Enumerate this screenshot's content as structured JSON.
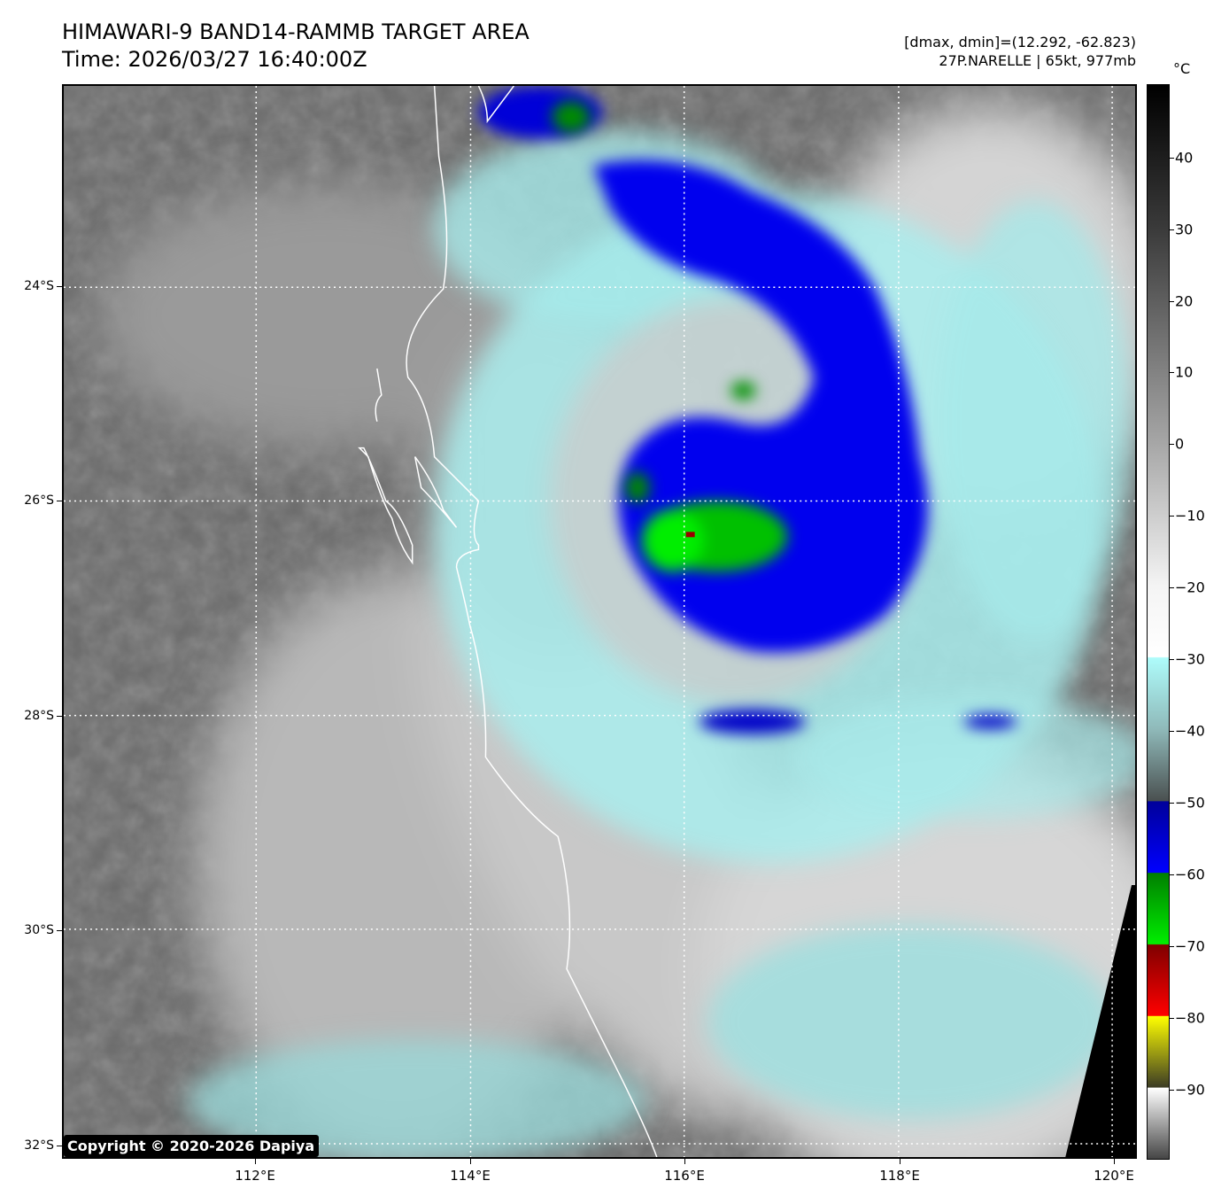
{
  "header": {
    "title": "HIMAWARI-9 BAND14-RAMMB TARGET AREA",
    "time": "Time: 2026/03/27 16:40:00Z",
    "range_text": "[dmax, dmin]=(12.292, -62.823)",
    "storm_text": "27P.NARELLE | 65kt, 977mb"
  },
  "map": {
    "latitude_labels": [
      "24°S",
      "26°S",
      "28°S",
      "30°S",
      "32°S"
    ],
    "longitude_labels": [
      "112°E",
      "114°E",
      "116°E",
      "118°E",
      "120°E"
    ],
    "copyright": "Copyright © 2020-2026 Dapiya"
  },
  "colorbar": {
    "unit": "°C",
    "tick_labels": [
      "40",
      "30",
      "20",
      "10",
      "0",
      "−10",
      "−20",
      "−30",
      "−40",
      "−50",
      "−60",
      "−70",
      "−80",
      "−90"
    ],
    "stops": [
      {
        "temp": 50,
        "color": "#000000"
      },
      {
        "temp": 30,
        "color": "#3a3a3a"
      },
      {
        "temp": 0,
        "color": "#a6a6a6"
      },
      {
        "temp": -20,
        "color": "#f4f4f4"
      },
      {
        "temp": -29.9,
        "color": "#ffffff"
      },
      {
        "temp": -30,
        "color": "#aefcfb"
      },
      {
        "temp": -40,
        "color": "#8fb9b9"
      },
      {
        "temp": -50,
        "color": "#4a5050"
      },
      {
        "temp": -50.1,
        "color": "#00009a"
      },
      {
        "temp": -60,
        "color": "#0000ff"
      },
      {
        "temp": -60.1,
        "color": "#007f00"
      },
      {
        "temp": -70,
        "color": "#00ee00"
      },
      {
        "temp": -70.1,
        "color": "#7f0000"
      },
      {
        "temp": -80,
        "color": "#ff0000"
      },
      {
        "temp": -80.1,
        "color": "#ffff00"
      },
      {
        "temp": -90,
        "color": "#3c3c24"
      },
      {
        "temp": -90.1,
        "color": "#ffffff"
      },
      {
        "temp": -100,
        "color": "#454545"
      }
    ]
  }
}
